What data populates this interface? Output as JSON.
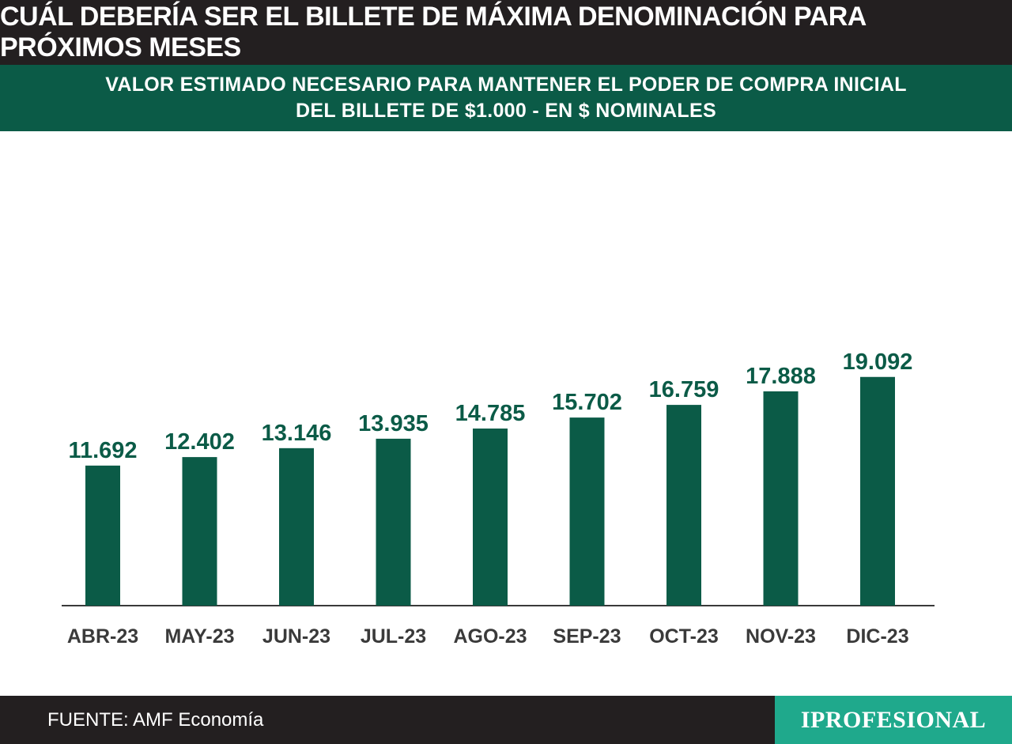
{
  "header": {
    "title": "CUÁL DEBERÍA SER EL BILLETE DE MÁXIMA DENOMINACIÓN PARA PRÓXIMOS MESES",
    "subtitle_line1": "VALOR ESTIMADO NECESARIO PARA MANTENER EL PODER DE COMPRA INICIAL",
    "subtitle_line2": "DEL BILLETE DE $1.000 - EN $ NOMINALES"
  },
  "footer": {
    "source": "FUENTE: AMF Economía",
    "brand": "IPROFESIONAL"
  },
  "colors": {
    "bar": "#0b5b47",
    "value_label": "#0b5b47",
    "axis_label": "#3a3a3a",
    "title_bg": "#231f20",
    "subtitle_bg": "#0b5b47",
    "brand_bg": "#1fa98c"
  },
  "chart_data": {
    "type": "bar",
    "categories": [
      "ABR-23",
      "MAY-23",
      "JUN-23",
      "JUL-23",
      "AGO-23",
      "SEP-23",
      "OCT-23",
      "NOV-23",
      "DIC-23"
    ],
    "values": [
      11692,
      12402,
      13146,
      13935,
      14785,
      15702,
      16759,
      17888,
      19092
    ],
    "value_labels": [
      "11.692",
      "12.402",
      "13.146",
      "13.935",
      "14.785",
      "15.702",
      "16.759",
      "17.888",
      "19.092"
    ],
    "ylim": [
      0,
      20000
    ],
    "grid": false,
    "legend": "none"
  }
}
